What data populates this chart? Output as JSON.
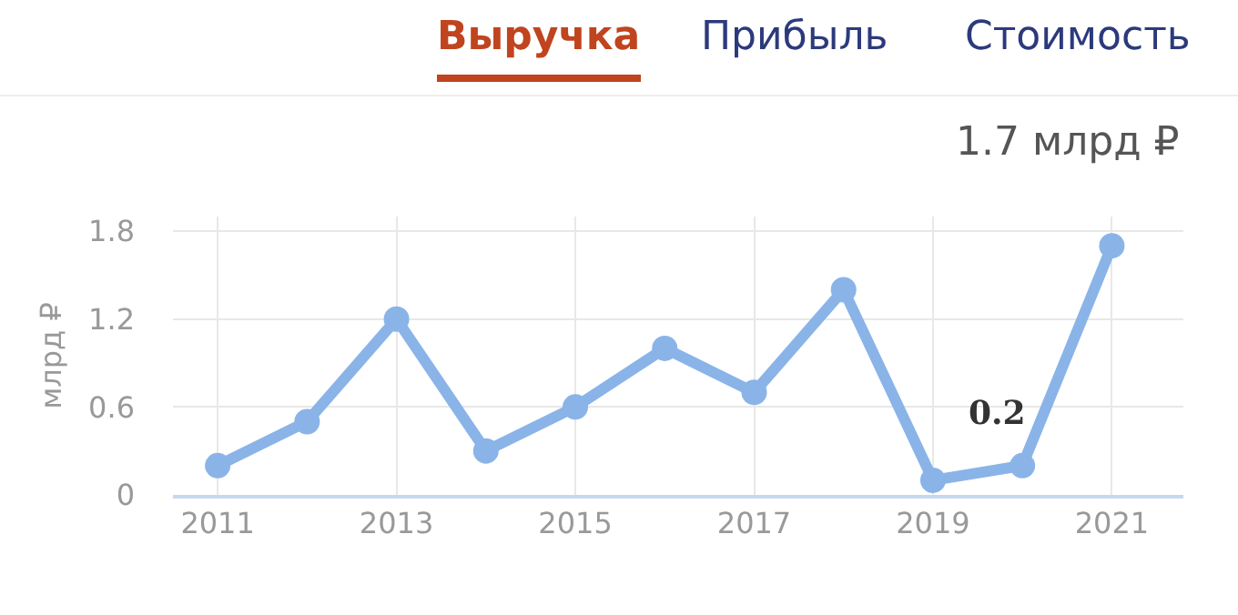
{
  "chart_data": {
    "type": "line",
    "ylabel": "млрд ₽",
    "annotations": [
      "Выручка",
      "Прибыль",
      "Стоимость",
      "1.7 млрд ₽",
      {
        "text": "0.2",
        "x": 2020,
        "y": 0.2
      }
    ],
    "x": [
      2011,
      2012,
      2013,
      2014,
      2015,
      2016,
      2017,
      2018,
      2019,
      2020,
      2021
    ],
    "series": [
      {
        "color": "#8ab4e8",
        "values": [
          0.2,
          0.5,
          1.2,
          0.3,
          0.6,
          1.0,
          0.7,
          1.4,
          0.1,
          0.2,
          1.7
        ]
      }
    ],
    "xlim": [
      2010.5,
      2021.8
    ],
    "xticks": [
      2011,
      2013,
      2015,
      2017,
      2019,
      2021
    ],
    "ylim": [
      0,
      1.9
    ],
    "yticks": [
      0,
      0.6,
      1.2,
      1.8
    ],
    "grid": true,
    "marker": "circle",
    "line_style": "solid"
  }
}
